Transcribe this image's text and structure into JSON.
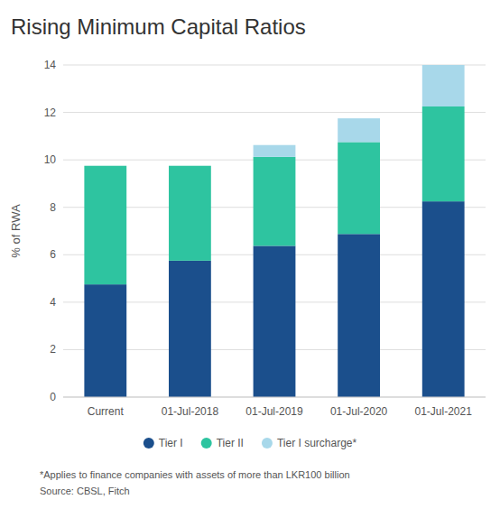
{
  "chart_data": {
    "type": "bar",
    "stacked": true,
    "title": "Rising Minimum Capital Ratios",
    "ylabel": "% of RWA",
    "categories": [
      "Current",
      "01-Jul-2018",
      "01-Jul-2019",
      "01-Jul-2020",
      "01-Jul-2021"
    ],
    "series": [
      {
        "name": "Tier I",
        "color": "#1b4f8c",
        "values": [
          4.75,
          5.75,
          6.375,
          6.875,
          8.25
        ]
      },
      {
        "name": "Tier II",
        "color": "#2ec4a0",
        "values": [
          5.0,
          4.0,
          3.75,
          3.875,
          4.0
        ]
      },
      {
        "name": "Tier I surcharge*",
        "color": "#a8d8ea",
        "values": [
          0.0,
          0.0,
          0.5,
          1.0,
          1.75
        ]
      }
    ],
    "ylim": [
      0,
      14
    ],
    "yticks": [
      0,
      2,
      4,
      6,
      8,
      10,
      12,
      14
    ],
    "grid": true,
    "legend": "bottom",
    "annotations": [
      "*Applies to finance companies with assets of more than LKR100 billion",
      "Source: CBSL, Fitch"
    ]
  }
}
